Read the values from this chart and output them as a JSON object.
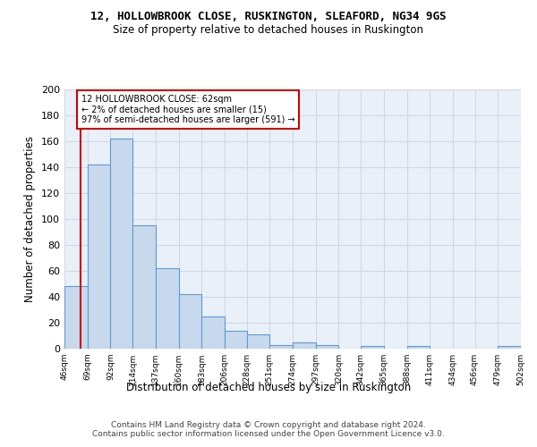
{
  "title1": "12, HOLLOWBROOK CLOSE, RUSKINGTON, SLEAFORD, NG34 9GS",
  "title2": "Size of property relative to detached houses in Ruskington",
  "xlabel": "Distribution of detached houses by size in Ruskington",
  "ylabel": "Number of detached properties",
  "bar_values": [
    48,
    142,
    162,
    95,
    62,
    42,
    25,
    14,
    11,
    3,
    5,
    3,
    0,
    2,
    0,
    2,
    0,
    0,
    0,
    2
  ],
  "bin_labels": [
    "46sqm",
    "69sqm",
    "92sqm",
    "114sqm",
    "137sqm",
    "160sqm",
    "183sqm",
    "206sqm",
    "228sqm",
    "251sqm",
    "274sqm",
    "297sqm",
    "320sqm",
    "342sqm",
    "365sqm",
    "388sqm",
    "411sqm",
    "434sqm",
    "456sqm",
    "479sqm",
    "502sqm"
  ],
  "bin_edges": [
    46,
    69,
    92,
    114,
    137,
    160,
    183,
    206,
    228,
    251,
    274,
    297,
    320,
    342,
    365,
    388,
    411,
    434,
    456,
    479,
    502
  ],
  "bar_color": "#c9d9ed",
  "bar_edge_color": "#5b9bd5",
  "grid_color": "#d0d8e8",
  "property_line_x": 62,
  "property_line_color": "#cc0000",
  "annotation_line1": "12 HOLLOWBROOK CLOSE: 62sqm",
  "annotation_line2": "← 2% of detached houses are smaller (15)",
  "annotation_line3": "97% of semi-detached houses are larger (591) →",
  "annotation_box_color": "#ffffff",
  "annotation_box_edge": "#cc0000",
  "ylim": [
    0,
    200
  ],
  "yticks": [
    0,
    20,
    40,
    60,
    80,
    100,
    120,
    140,
    160,
    180,
    200
  ],
  "footer": "Contains HM Land Registry data © Crown copyright and database right 2024.\nContains public sector information licensed under the Open Government Licence v3.0.",
  "bg_color": "#eaf0f8"
}
